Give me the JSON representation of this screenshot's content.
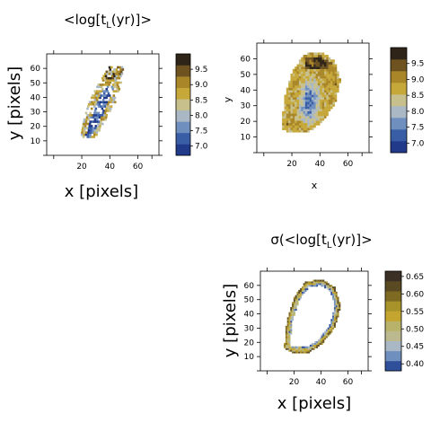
{
  "chart_data": [
    {
      "type": "heatmap",
      "title": "<log[tL(yr)]>",
      "title_parts": [
        "<log[t",
        "L",
        "(yr)]>"
      ],
      "xlabel": "x [pixels]",
      "ylabel": "y [pixels]",
      "xlim": [
        -5,
        75
      ],
      "ylim": [
        0,
        70
      ],
      "xticks": [
        20,
        40,
        60
      ],
      "yticks": [
        10,
        20,
        30,
        40,
        50,
        60
      ],
      "grid": false,
      "colorbar": {
        "min": 6.7,
        "max": 10.0,
        "ticks": [
          7.0,
          7.5,
          8.0,
          8.5,
          9.0,
          9.5
        ],
        "tick_labels": [
          "7.0",
          "7.5",
          "8.0",
          "8.5",
          "9.0",
          "9.5"
        ],
        "colors": [
          "#223a8a",
          "#3a5ea5",
          "#6f8fbf",
          "#a9b8c4",
          "#c8c08c",
          "#c6a83a",
          "#a98628",
          "#6e5320",
          "#2f2418"
        ]
      },
      "region": {
        "description_shape": "sparse diagonal band",
        "center_x": [
          25,
          34,
          40,
          43
        ],
        "center_y": [
          20,
          35,
          47,
          54
        ]
      }
    },
    {
      "type": "heatmap",
      "title": "",
      "xlabel": "x",
      "ylabel": "y",
      "xlim": [
        -5,
        75
      ],
      "ylim": [
        0,
        70
      ],
      "xticks": [
        20,
        40,
        60
      ],
      "yticks": [
        10,
        20,
        30,
        40,
        50,
        60
      ],
      "grid": false,
      "colorbar": {
        "min": 6.7,
        "max": 10.0,
        "ticks": [
          7.0,
          7.5,
          8.0,
          8.5,
          9.0,
          9.5
        ],
        "tick_labels": [
          "7.0",
          "7.5",
          "8.0",
          "8.5",
          "9.0",
          "9.5"
        ],
        "colors": [
          "#223a8a",
          "#3a5ea5",
          "#6f8fbf",
          "#a9b8c4",
          "#c8c08c",
          "#c6a83a",
          "#a98628",
          "#6e5320",
          "#2f2418"
        ]
      },
      "region": {
        "outline_xy": [
          [
            12,
            15
          ],
          [
            14,
            35
          ],
          [
            20,
            52
          ],
          [
            28,
            62
          ],
          [
            40,
            64
          ],
          [
            50,
            58
          ],
          [
            54,
            45
          ],
          [
            50,
            30
          ],
          [
            40,
            18
          ],
          [
            30,
            12
          ],
          [
            18,
            12
          ]
        ]
      }
    },
    {
      "type": "heatmap",
      "title": "σ(<log[tL(yr)]>",
      "title_parts": [
        "σ(<log[t",
        "L",
        "(yr)]>"
      ],
      "xlabel": "x [pixels]",
      "ylabel": "y [pixels]",
      "xlim": [
        -5,
        75
      ],
      "ylim": [
        0,
        70
      ],
      "xticks": [
        20,
        40,
        60
      ],
      "yticks": [
        10,
        20,
        30,
        40,
        50,
        60
      ],
      "grid": false,
      "colorbar": {
        "min": 0.38,
        "max": 0.665,
        "ticks": [
          0.4,
          0.45,
          0.5,
          0.55,
          0.6,
          0.65
        ],
        "tick_labels": [
          "0.40",
          "0.45",
          "0.50",
          "0.55",
          "0.60",
          "0.65"
        ],
        "colors": [
          "#2f4f9a",
          "#6f8fbf",
          "#a9b8c4",
          "#bdb98e",
          "#b9b26a",
          "#c4a530",
          "#a8922a",
          "#7f6a24",
          "#5a4a22",
          "#3a3024"
        ]
      },
      "region": {
        "outline_xy": [
          [
            12,
            15
          ],
          [
            14,
            35
          ],
          [
            20,
            52
          ],
          [
            28,
            62
          ],
          [
            40,
            64
          ],
          [
            50,
            58
          ],
          [
            54,
            45
          ],
          [
            50,
            30
          ],
          [
            40,
            18
          ],
          [
            30,
            12
          ],
          [
            18,
            12
          ]
        ]
      }
    }
  ]
}
